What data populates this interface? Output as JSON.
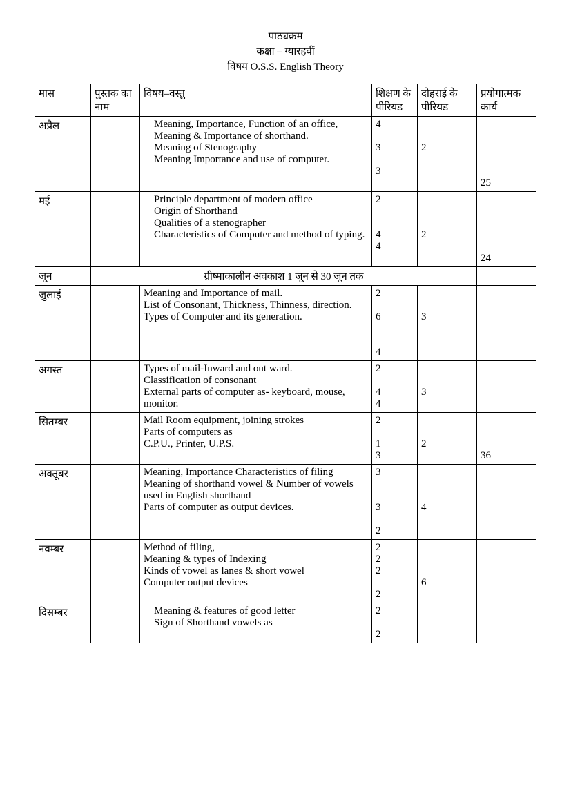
{
  "header": {
    "line1": "पाठ्यक्रम",
    "line2": "कक्षा – ग्यारहवीं",
    "line3": "विषय O.S.S. English  Theory"
  },
  "columns": {
    "c1": "मास",
    "c2": "पुस्तक का नाम",
    "c3": "विषय–वस्तु",
    "c4": "शिक्षण के पीरियड",
    "c5": "दोहराई के पीरियड",
    "c6": "प्रयोगात्मक कार्य"
  },
  "rows": {
    "april": {
      "month": "अप्रैल",
      "content1": "Meaning, Importance, Function of an office, Meaning & Importance of shorthand.",
      "content2": "Meaning of Stenography",
      "content3": "Meaning Importance and use of computer.",
      "teach1": "4",
      "teach2": "3",
      "teach3": "3",
      "rev": "2",
      "prac": "25"
    },
    "may": {
      "month": "मई",
      "content1": "Principle department of modern office",
      "content2": "Origin of  Shorthand",
      "content3": "Qualities of a stenographer",
      "content4": "Characteristics of Computer and method of typing.",
      "teach1": "2",
      "teach2": "4",
      "teach3": "4",
      "rev": "2",
      "prac": "24"
    },
    "june": {
      "month": "जून",
      "text": "ग्रीष्माकालीन अवकाश 1 जून से 30 जून तक"
    },
    "july": {
      "month": "जुलाई",
      "content1": "Meaning and Importance of mail.",
      "content2": "List of Consonant, Thickness, Thinness, direction.",
      "content3": "Types of Computer and its generation.",
      "teach1": "2",
      "teach2": "6",
      "teach3": "4",
      "rev": "3"
    },
    "august": {
      "month": "अगस्त",
      "content1": "Types of mail-Inward and out ward.",
      "content2": "Classification of consonant",
      "content3": "External parts of computer as- keyboard, mouse, monitor.",
      "teach1": "2",
      "teach2": "4",
      "teach3": "4",
      "rev": "3"
    },
    "september": {
      "month": "सितम्बर",
      "content1": "Mail Room equipment,  joining strokes",
      "content2": "Parts of computers as",
      "content3": "C.P.U., Printer, U.P.S.",
      "teach1": "2",
      "teach2": "1",
      "teach3": "3",
      "rev": "2",
      "prac": "36"
    },
    "october": {
      "month": "अक्तूबर",
      "content1": "Meaning, Importance Characteristics of filing",
      "content2": "Meaning of shorthand vowel & Number of vowels used in English shorthand",
      "content3": "Parts of computer as output devices.",
      "teach1": "3",
      "teach2": "3",
      "teach3": "2",
      "rev": "4"
    },
    "november": {
      "month": "नवम्बर",
      "content1": "Method of filing,",
      "content2": "Meaning & types of  Indexing",
      "content3": "Kinds of vowel as lanes & short vowel",
      "content4": "Computer output devices",
      "teach1": "2",
      "teach2": "2",
      "teach3": "2",
      "teach4": "2",
      "rev": "6"
    },
    "december": {
      "month": "दिसम्बर",
      "content1": "Meaning & features of good letter",
      "content2": "Sign of Shorthand vowels as",
      "teach1": "2",
      "teach2": "2"
    }
  }
}
